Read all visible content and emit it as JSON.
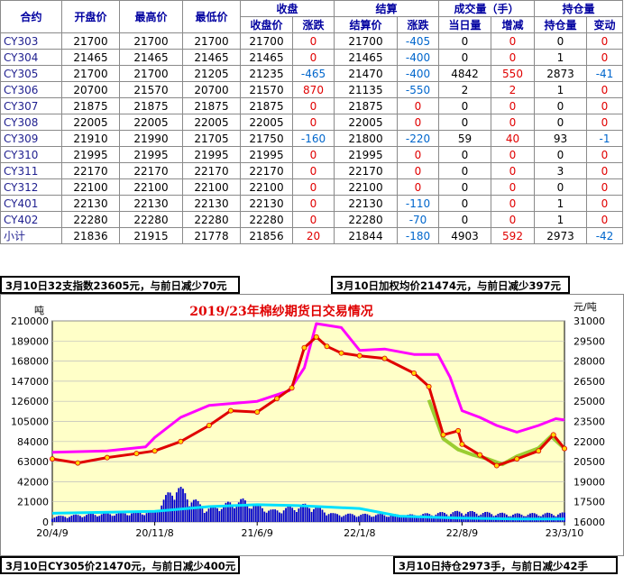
{
  "table": {
    "group_headers": {
      "close": "收盘",
      "settle": "结算",
      "volume": "成交量（手）",
      "oi": "持仓量"
    },
    "headers": [
      "合约",
      "开盘价",
      "最高价",
      "最低价",
      "收盘价",
      "涨跌",
      "结算价",
      "涨跌",
      "当日量",
      "增减",
      "持仓量",
      "变动"
    ],
    "rows": [
      [
        "CY303",
        "21700",
        "21700",
        "21700",
        "21700",
        "0",
        "21700",
        "-405",
        "0",
        "0",
        "0",
        "0"
      ],
      [
        "CY304",
        "21465",
        "21465",
        "21465",
        "21465",
        "0",
        "21465",
        "-400",
        "0",
        "0",
        "1",
        "0"
      ],
      [
        "CY305",
        "21700",
        "21700",
        "21205",
        "21235",
        "-465",
        "21470",
        "-400",
        "4842",
        "550",
        "2873",
        "-41"
      ],
      [
        "CY306",
        "20700",
        "21570",
        "20700",
        "21570",
        "870",
        "21135",
        "-550",
        "2",
        "2",
        "1",
        "0"
      ],
      [
        "CY307",
        "21875",
        "21875",
        "21875",
        "21875",
        "0",
        "21875",
        "0",
        "0",
        "0",
        "0",
        "0"
      ],
      [
        "CY308",
        "22005",
        "22005",
        "22005",
        "22005",
        "0",
        "22005",
        "0",
        "0",
        "0",
        "0",
        "0"
      ],
      [
        "CY309",
        "21910",
        "21990",
        "21705",
        "21750",
        "-160",
        "21800",
        "-220",
        "59",
        "40",
        "93",
        "-1"
      ],
      [
        "CY310",
        "21995",
        "21995",
        "21995",
        "21995",
        "0",
        "21995",
        "0",
        "0",
        "0",
        "0",
        "0"
      ],
      [
        "CY311",
        "22170",
        "22170",
        "22170",
        "22170",
        "0",
        "22170",
        "0",
        "0",
        "0",
        "3",
        "0"
      ],
      [
        "CY312",
        "22100",
        "22100",
        "22100",
        "22100",
        "0",
        "22100",
        "0",
        "0",
        "0",
        "0",
        "0"
      ],
      [
        "CY401",
        "22130",
        "22130",
        "22130",
        "22130",
        "0",
        "22130",
        "-110",
        "0",
        "0",
        "1",
        "0"
      ],
      [
        "CY402",
        "22280",
        "22280",
        "22280",
        "22280",
        "0",
        "22280",
        "-70",
        "0",
        "0",
        "1",
        "0"
      ],
      [
        "小计",
        "21836",
        "21915",
        "21778",
        "21856",
        "20",
        "21844",
        "-180",
        "4903",
        "592",
        "2973",
        "-42"
      ]
    ]
  },
  "notes": {
    "top_left": "3月10日32支指数23605元，与前日减少70元",
    "top_right": "3月10日加权均价21474元，与前日减少397元",
    "bottom_left": "3月10日CY305价21470元，与前日减少400元",
    "bottom_right": "3月10日持仓2973手，与前日减少42手"
  },
  "colors": {
    "plot_bg": "#ffffc8",
    "frame_bg": "#ffffff",
    "title": "#e00000",
    "price_line": "#e00000",
    "price_marker": "#ffd700",
    "index_line": "#ff00ff",
    "cy305_line": "#9acd32",
    "volume_bar": "#0000cc",
    "oi_line": "#00e0ff"
  },
  "chart_data": {
    "type": "line",
    "title": "2019/23年棉纱期货日交易情况",
    "left_unit": "吨",
    "right_unit": "元/吨",
    "left_axis": {
      "ticks": [
        "210000",
        "189000",
        "168000",
        "147000",
        "126000",
        "105000",
        "84000",
        "63000",
        "42000",
        "21000",
        "0"
      ],
      "ylim": [
        0,
        210000
      ]
    },
    "right_axis": {
      "ticks": [
        "31000",
        "29500",
        "28000",
        "26500",
        "25000",
        "23500",
        "22000",
        "20500",
        "19000",
        "17500",
        "16000"
      ],
      "ylim": [
        16000,
        31000
      ]
    },
    "x_ticks": [
      "20/4/9",
      "20/11/8",
      "21/6/9",
      "22/1/8",
      "22/8/9",
      "23/3/10"
    ],
    "grid": true,
    "series": [
      {
        "key": "weighted_price",
        "axis": "right",
        "x": [
          "20/4/9",
          "20/6/1",
          "20/8/1",
          "20/10/1",
          "20/11/8",
          "21/1/1",
          "21/3/1",
          "21/4/15",
          "21/6/9",
          "21/7/20",
          "21/8/20",
          "21/9/15",
          "21/10/10",
          "21/11/1",
          "21/12/1",
          "22/1/8",
          "22/3/1",
          "22/5/1",
          "22/6/1",
          "22/7/1",
          "22/8/1",
          "22/8/9",
          "22/9/15",
          "22/10/20",
          "22/12/1",
          "23/1/15",
          "23/2/15",
          "23/3/10"
        ],
        "values": [
          20700,
          20400,
          20800,
          21100,
          21300,
          22000,
          23200,
          24300,
          24200,
          25200,
          26000,
          29000,
          29800,
          29100,
          28600,
          28400,
          28200,
          27100,
          26100,
          22500,
          22800,
          21800,
          21000,
          20200,
          20700,
          21300,
          22500,
          21474
        ]
      },
      {
        "key": "index_32s",
        "axis": "right",
        "x": [
          "20/4/9",
          "20/8/1",
          "20/10/20",
          "20/11/8",
          "21/1/1",
          "21/3/1",
          "21/6/9",
          "21/8/15",
          "21/9/15",
          "21/10/10",
          "21/12/1",
          "22/1/8",
          "22/3/1",
          "22/5/1",
          "22/6/20",
          "22/7/15",
          "22/8/9",
          "22/9/15",
          "22/10/20",
          "22/12/1",
          "23/1/15",
          "23/2/20",
          "23/3/10"
        ],
        "values": [
          21200,
          21300,
          21600,
          22300,
          23800,
          24700,
          25000,
          25800,
          27500,
          30800,
          30500,
          28800,
          28900,
          28500,
          28500,
          26800,
          24300,
          23800,
          23200,
          22700,
          23200,
          23700,
          23605
        ]
      },
      {
        "key": "cy305_price",
        "axis": "right",
        "x": [
          "22/6/1",
          "22/7/1",
          "22/8/1",
          "22/9/1",
          "22/10/1",
          "22/11/1",
          "22/12/1",
          "23/1/15",
          "23/2/10",
          "23/3/10"
        ],
        "values": [
          25100,
          22200,
          21400,
          21000,
          20700,
          20300,
          20900,
          21500,
          22400,
          21470
        ]
      },
      {
        "key": "volume",
        "axis": "left",
        "type": "bar",
        "x_range": [
          "20/4/9",
          "23/3/10"
        ],
        "profile": [
          [
            0,
            6000
          ],
          [
            0.08,
            9000
          ],
          [
            0.2,
            12000
          ],
          [
            0.24,
            42000
          ],
          [
            0.3,
            15000
          ],
          [
            0.37,
            25000
          ],
          [
            0.43,
            13000
          ],
          [
            0.5,
            20000
          ],
          [
            0.55,
            9000
          ],
          [
            0.7,
            8000
          ],
          [
            0.8,
            12000
          ],
          [
            0.9,
            9000
          ],
          [
            1,
            10000
          ]
        ]
      },
      {
        "key": "open_interest",
        "axis": "left",
        "x": [
          "20/4/9",
          "20/11/8",
          "21/3/1",
          "21/6/9",
          "21/9/1",
          "22/1/8",
          "22/4/1",
          "22/8/9",
          "22/12/1",
          "23/3/10"
        ],
        "values": [
          9000,
          11000,
          16000,
          18000,
          17000,
          14000,
          6000,
          4000,
          3000,
          2973
        ]
      }
    ]
  }
}
